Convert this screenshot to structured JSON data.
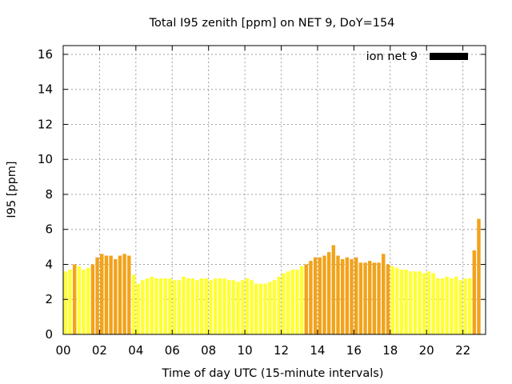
{
  "chart_data": {
    "type": "bar",
    "title": "Total I95 zenith [ppm] on NET 9, DoY=154",
    "xlabel": "Time of day UTC (15-minute intervals)",
    "ylabel": "I95 [ppm]",
    "legend": {
      "label": "ion net 9",
      "color": "#000000",
      "placement": "top-right"
    },
    "x_ticks": [
      "00",
      "02",
      "04",
      "06",
      "08",
      "10",
      "12",
      "14",
      "16",
      "18",
      "20",
      "22"
    ],
    "y_ticks": [
      "0",
      "2",
      "4",
      "6",
      "8",
      "10",
      "12",
      "14",
      "16"
    ],
    "xlim": [
      0,
      23.25
    ],
    "ylim": [
      0,
      16.5
    ],
    "grid": true,
    "interval_hours": 0.25,
    "colors": {
      "low": "#ffff33",
      "high": "#f2a31a"
    },
    "threshold": 4.0,
    "values": [
      3.6,
      3.7,
      4.0,
      3.9,
      3.7,
      3.8,
      4.0,
      4.4,
      4.6,
      4.5,
      4.5,
      4.3,
      4.5,
      4.6,
      4.5,
      3.4,
      2.9,
      3.1,
      3.2,
      3.3,
      3.2,
      3.2,
      3.2,
      3.2,
      3.1,
      3.1,
      3.3,
      3.2,
      3.2,
      3.1,
      3.2,
      3.2,
      3.1,
      3.2,
      3.2,
      3.2,
      3.1,
      3.1,
      3.0,
      3.1,
      3.2,
      3.1,
      2.9,
      2.9,
      2.9,
      3.0,
      3.1,
      3.3,
      3.5,
      3.6,
      3.7,
      3.7,
      3.9,
      4.0,
      4.2,
      4.4,
      4.4,
      4.5,
      4.7,
      5.1,
      4.5,
      4.3,
      4.4,
      4.3,
      4.4,
      4.1,
      4.1,
      4.2,
      4.1,
      4.1,
      4.6,
      4.0,
      3.9,
      3.8,
      3.7,
      3.7,
      3.6,
      3.6,
      3.6,
      3.5,
      3.6,
      3.5,
      3.2,
      3.2,
      3.3,
      3.2,
      3.3,
      3.1,
      3.2,
      3.2,
      4.8,
      6.6
    ]
  }
}
